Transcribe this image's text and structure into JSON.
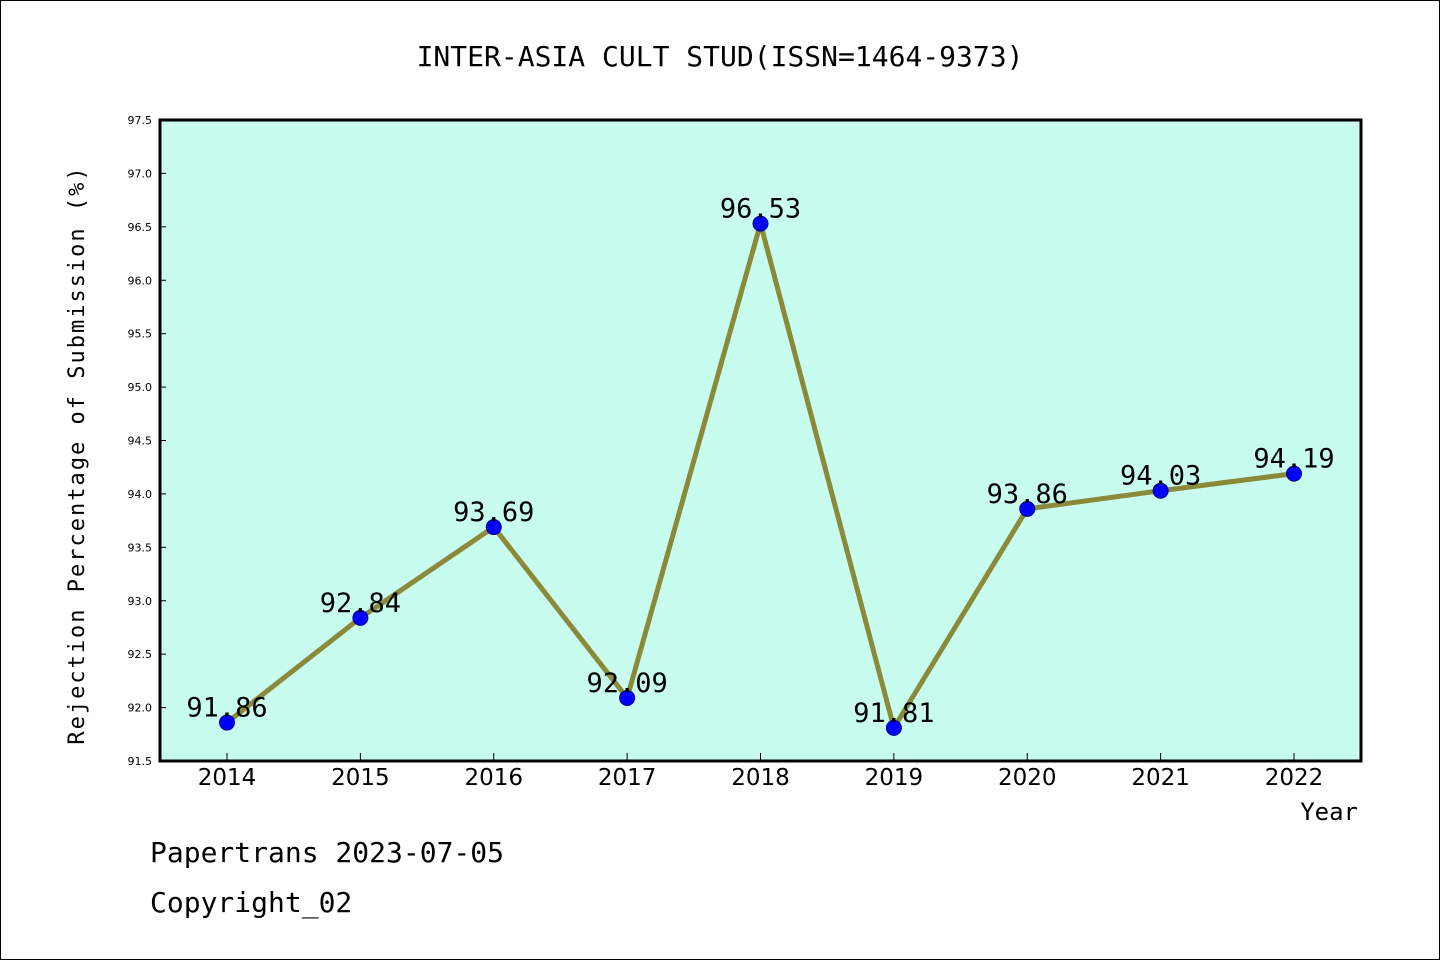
{
  "chart_data": {
    "type": "line",
    "title": "INTER-ASIA CULT STUD(ISSN=1464-9373)",
    "xlabel": "Year",
    "ylabel": "Rejection Percentage of Submission (%)",
    "categories": [
      "2014",
      "2015",
      "2016",
      "2017",
      "2018",
      "2019",
      "2020",
      "2021",
      "2022"
    ],
    "series": [
      {
        "values": [
          91.86,
          92.84,
          93.69,
          92.09,
          96.53,
          91.81,
          93.86,
          94.03,
          94.19
        ]
      }
    ],
    "data_labels": [
      "91.86",
      "92.84",
      "93.69",
      "92.09",
      "96.53",
      "91.81",
      "93.86",
      "94.03",
      "94.19"
    ],
    "ylim": [
      91.5,
      97.5
    ],
    "yticks": [
      "91.5",
      "92.0",
      "92.5",
      "93.0",
      "93.5",
      "94.0",
      "94.5",
      "95.0",
      "95.5",
      "96.0",
      "96.5",
      "97.0",
      "97.5"
    ],
    "grid": false,
    "colors": {
      "plot_background": "#c8fcee",
      "line": "#8b8a3a",
      "marker": "#0000ff"
    }
  },
  "footer": {
    "line1": "Papertrans 2023-07-05",
    "line2": "Copyright_02"
  }
}
